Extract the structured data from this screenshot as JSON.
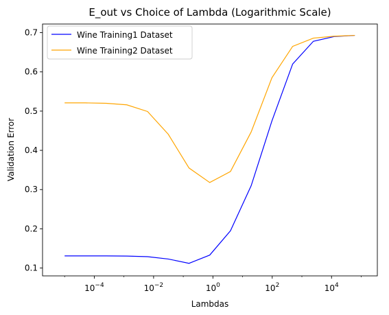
{
  "chart_data": {
    "type": "line",
    "title": "E_out vs Choice of Lambda (Logarithmic Scale)",
    "xlabel": "Lambdas",
    "ylabel": "Validation Error",
    "xscale": "log",
    "xlim": [
      1.8e-06,
      350000.0
    ],
    "ylim": [
      0.08,
      0.722
    ],
    "xticks": [
      {
        "value": 0.0001,
        "base": "10",
        "exp": "−4"
      },
      {
        "value": 0.01,
        "base": "10",
        "exp": "−2"
      },
      {
        "value": 1,
        "base": "10",
        "exp": "0"
      },
      {
        "value": 100,
        "base": "10",
        "exp": "2"
      },
      {
        "value": 10000,
        "base": "10",
        "exp": "4"
      }
    ],
    "yticks": [
      {
        "value": 0.1,
        "label": "0.1"
      },
      {
        "value": 0.2,
        "label": "0.2"
      },
      {
        "value": 0.3,
        "label": "0.3"
      },
      {
        "value": 0.4,
        "label": "0.4"
      },
      {
        "value": 0.5,
        "label": "0.5"
      },
      {
        "value": 0.6,
        "label": "0.6"
      },
      {
        "value": 0.7,
        "label": "0.7"
      }
    ],
    "grid": false,
    "legend": "upper-left",
    "x": [
      1e-05,
      5e-05,
      0.00025,
      0.00125,
      0.00625,
      0.03125,
      0.15625,
      0.78125,
      3.90625,
      19.53125,
      97.65625,
      488.28125,
      2441.40625,
      12207.03125,
      61035.15625
    ],
    "series": [
      {
        "name": "Wine Training1 Dataset",
        "color": "#0000ff",
        "values": [
          0.131,
          0.131,
          0.131,
          0.1305,
          0.129,
          0.123,
          0.112,
          0.133,
          0.195,
          0.31,
          0.475,
          0.62,
          0.678,
          0.69,
          0.693
        ]
      },
      {
        "name": "Wine Training2 Dataset",
        "color": "#ffa500",
        "values": [
          0.521,
          0.521,
          0.52,
          0.516,
          0.499,
          0.441,
          0.355,
          0.318,
          0.346,
          0.447,
          0.585,
          0.665,
          0.686,
          0.691,
          0.693
        ]
      }
    ]
  }
}
